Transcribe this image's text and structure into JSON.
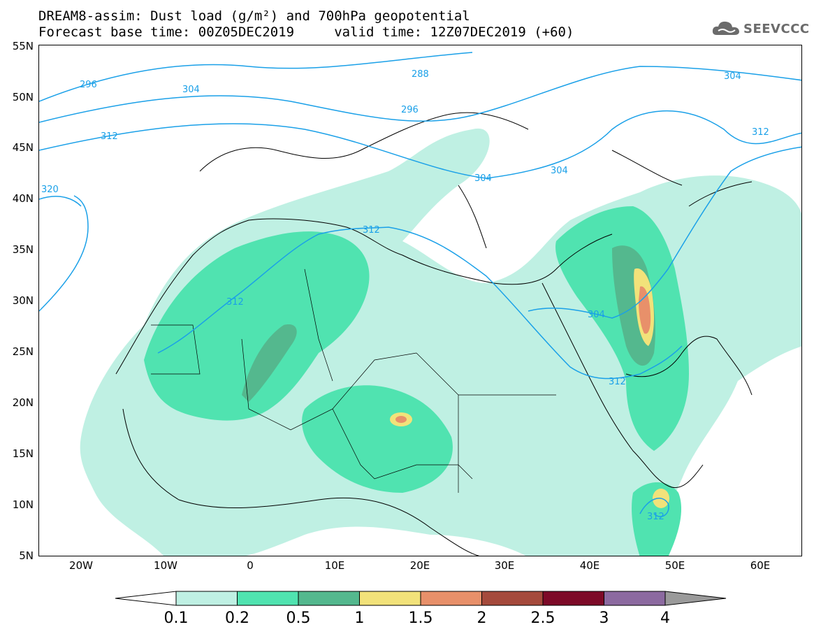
{
  "title": {
    "line1": "DREAM8-assim: Dust load (g/m²) and 700hPa geopotential",
    "line2": "Forecast base time: 00Z05DEC2019     valid time: 12Z07DEC2019 (+60)"
  },
  "logo": {
    "text": "SEEVCCC",
    "icon": "cloud-icon"
  },
  "axes": {
    "lat_labels": [
      "55N",
      "50N",
      "45N",
      "40N",
      "35N",
      "30N",
      "25N",
      "20N",
      "15N",
      "10N",
      "5N"
    ],
    "lon_labels": [
      "20W",
      "10W",
      "0",
      "10E",
      "20E",
      "30E",
      "40E",
      "50E",
      "60E"
    ]
  },
  "contours": {
    "labels": [
      "296",
      "288",
      "304",
      "296",
      "312",
      "304",
      "304",
      "304",
      "312",
      "320",
      "312",
      "312",
      "304",
      "312",
      "312"
    ]
  },
  "colorbar": {
    "ticks": [
      "0.1",
      "0.2",
      "0.5",
      "1",
      "1.5",
      "2",
      "2.5",
      "3",
      "4"
    ],
    "colors": [
      "#bff0e3",
      "#50e3b0",
      "#54b88e",
      "#f2e27a",
      "#e8906a",
      "#a54a3c",
      "#7d0a28",
      "#8c6aa0"
    ],
    "under_color": "#ffffff",
    "over_color": "#9a9a9a"
  },
  "map_colors": {
    "light": "#bff0e3",
    "medium": "#50e3b0",
    "dark": "#54b88e",
    "yellow": "#f2e27a",
    "orange": "#e8906a",
    "red": "#a54a3c",
    "contour": "#1aa0e8"
  }
}
